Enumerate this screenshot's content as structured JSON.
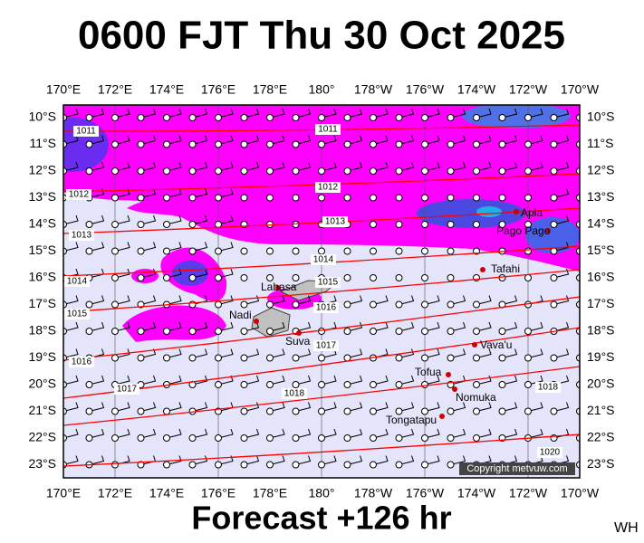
{
  "title": "0600 FJT Thu 30 Oct 2025",
  "footer": "Forecast +126 hr",
  "tag": "WH",
  "copyright": "Copyright metvuw.com",
  "lon_labels": [
    "170°E",
    "172°E",
    "174°E",
    "176°E",
    "178°E",
    "180°",
    "178°W",
    "176°W",
    "174°W",
    "172°W",
    "170°W"
  ],
  "lat_labels": [
    "10°S",
    "11°S",
    "12°S",
    "13°S",
    "14°S",
    "15°S",
    "16°S",
    "17°S",
    "18°S",
    "19°S",
    "20°S",
    "21°S",
    "22°S",
    "23°S"
  ],
  "places": [
    "Apia",
    "Pago Pago",
    "Tafahi",
    "Labasa",
    "Nadi",
    "Suva",
    "Vava'u",
    "Tofua",
    "Nomuka",
    "Tongatapu"
  ],
  "isobars": [
    1011,
    1011,
    1012,
    1012,
    1013,
    1013,
    1014,
    1014,
    1015,
    1015,
    1016,
    1016,
    1017,
    1017,
    1018,
    1018,
    1020
  ]
}
